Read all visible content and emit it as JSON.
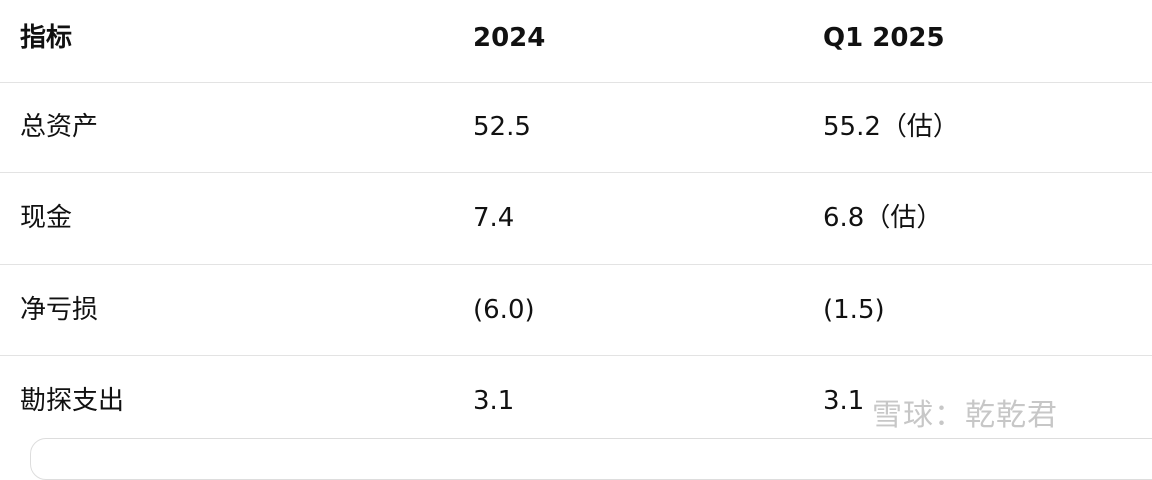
{
  "table": {
    "header": [
      "指标",
      "2024",
      "Q1 2025"
    ],
    "rows": [
      [
        "总资产",
        "52.5",
        "55.2（估）"
      ],
      [
        "现金",
        "7.4",
        "6.8（估）"
      ],
      [
        "净亏损",
        "(6.0)",
        "(1.5)"
      ],
      [
        "勘探支出",
        "3.1",
        "3.1"
      ]
    ]
  },
  "watermark": "雪球：乾乾君"
}
